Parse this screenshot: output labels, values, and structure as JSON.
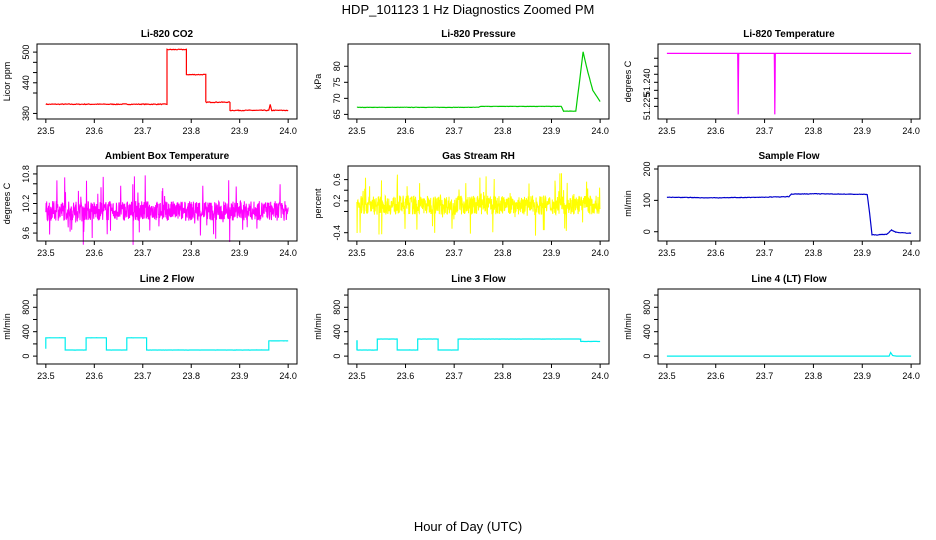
{
  "figure": {
    "title": "HDP_101123  1 Hz Diagnostics Zoomed PM",
    "xlabel": "Hour of Day (UTC)"
  },
  "chart_data": [
    {
      "type": "line",
      "title": "Li-820 CO2",
      "ylabel": "Licor ppm",
      "color": "#ff0000",
      "xlim": [
        23.49,
        24.01
      ],
      "ylim": [
        375,
        510
      ],
      "xticks": [
        "23.5",
        "23.6",
        "23.7",
        "23.8",
        "23.9",
        "24.0"
      ],
      "yticks": [
        380,
        440,
        500
      ],
      "yticks_minor": [
        420,
        460,
        480
      ],
      "series": [
        {
          "kind": "step",
          "noise": 1.5,
          "x": [
            23.5,
            23.75,
            23.75,
            23.79,
            23.79,
            23.83,
            23.83,
            23.88,
            23.88,
            23.96,
            23.963,
            23.966,
            24.0
          ],
          "y": [
            398,
            398,
            505,
            505,
            456,
            456,
            402,
            402,
            386,
            386,
            397,
            386,
            386
          ]
        }
      ]
    },
    {
      "type": "line",
      "title": "Li-820 Pressure",
      "ylabel": "kPa",
      "color": "#00cc00",
      "xlim": [
        23.49,
        24.01
      ],
      "ylim": [
        64.5,
        86
      ],
      "xticks": [
        "23.5",
        "23.6",
        "23.7",
        "23.8",
        "23.9",
        "24.0"
      ],
      "yticks": [
        65,
        70,
        75,
        80
      ],
      "series": [
        {
          "kind": "line",
          "noise": 0.1,
          "x": [
            23.5,
            23.75,
            23.755,
            23.92,
            23.925,
            23.95,
            23.955,
            23.965,
            23.975,
            23.985,
            24.0
          ],
          "y": [
            67.2,
            67.2,
            67.5,
            67.5,
            66.0,
            66.0,
            72.0,
            84.5,
            78.0,
            72.5,
            69.0
          ]
        }
      ]
    },
    {
      "type": "line",
      "title": "Li-820 Temperature",
      "ylabel": "degrees C",
      "color": "#ff00ff",
      "xlim": [
        23.49,
        24.01
      ],
      "ylim": [
        51.219,
        51.262
      ],
      "xticks": [
        "23.5",
        "23.6",
        "23.7",
        "23.8",
        "23.9",
        "24.0"
      ],
      "yticks": [
        "51.225",
        "51.240"
      ],
      "yticks_minor": [
        51.23,
        51.235,
        51.245,
        51.25,
        51.255
      ],
      "series": [
        {
          "kind": "line",
          "noise": 0,
          "x": [
            23.5,
            23.645,
            23.646,
            23.647,
            23.72,
            23.721,
            23.722,
            24.0
          ],
          "y": [
            51.258,
            51.258,
            51.22,
            51.258,
            51.258,
            51.22,
            51.258,
            51.258
          ]
        }
      ]
    },
    {
      "type": "line",
      "title": "Ambient Box Temperature",
      "ylabel": "degrees C",
      "color": "#ff00ff",
      "xlim": [
        23.49,
        24.01
      ],
      "ylim": [
        9.5,
        10.9
      ],
      "xticks": [
        "23.5",
        "23.6",
        "23.7",
        "23.8",
        "23.9",
        "24.0"
      ],
      "yticks": [
        9.6,
        10.2,
        10.8
      ],
      "yticks_minor": [
        9.8,
        10.0,
        10.4,
        10.6
      ],
      "series": [
        {
          "kind": "noisy",
          "center": 10.05,
          "amp": 0.2,
          "spike": 0.75
        }
      ]
    },
    {
      "type": "line",
      "title": "Gas Stream RH",
      "ylabel": "percent",
      "color": "#ffff00",
      "xlim": [
        23.49,
        24.01
      ],
      "ylim": [
        -0.5,
        0.8
      ],
      "xticks": [
        "23.5",
        "23.6",
        "23.7",
        "23.8",
        "23.9",
        "24.0"
      ],
      "yticks": [
        -0.4,
        0.2,
        0.6
      ],
      "yticks_minor": [
        0.0,
        0.4
      ],
      "series": [
        {
          "kind": "noisy",
          "center": 0.12,
          "amp": 0.18,
          "spike": 0.6
        }
      ]
    },
    {
      "type": "line",
      "title": "Sample Flow",
      "ylabel": "ml/min",
      "color": "#0000cc",
      "xlim": [
        23.49,
        24.01
      ],
      "ylim": [
        -20,
        200
      ],
      "xticks": [
        "23.5",
        "23.6",
        "23.7",
        "23.8",
        "23.9",
        "24.0"
      ],
      "yticks": [
        0,
        100,
        200
      ],
      "series": [
        {
          "kind": "line",
          "noise": 1.5,
          "x": [
            23.5,
            23.6,
            23.7,
            23.75,
            23.755,
            23.8,
            23.91,
            23.915,
            23.92,
            23.93,
            23.95,
            23.96,
            23.97,
            24.0
          ],
          "y": [
            110,
            108,
            110,
            112,
            120,
            121,
            119,
            60,
            -10,
            -10,
            -8,
            5,
            -2,
            -5
          ]
        }
      ]
    },
    {
      "type": "line",
      "title": "Line 2 Flow",
      "ylabel": "ml/min",
      "color": "#00eeee",
      "xlim": [
        23.49,
        24.01
      ],
      "ylim": [
        -80,
        1050
      ],
      "xticks": [
        "23.5",
        "23.6",
        "23.7",
        "23.8",
        "23.9",
        "24.0"
      ],
      "yticks": [
        0,
        400,
        800
      ],
      "yticks_minor": [
        200,
        600,
        1000
      ],
      "series": [
        {
          "kind": "step",
          "noise": 2,
          "x": [
            23.5,
            23.5,
            23.54,
            23.54,
            23.583,
            23.583,
            23.625,
            23.625,
            23.667,
            23.667,
            23.708,
            23.708,
            23.96,
            23.96,
            24.0
          ],
          "y": [
            120,
            300,
            300,
            100,
            100,
            300,
            300,
            100,
            100,
            300,
            300,
            100,
            100,
            250,
            250
          ]
        }
      ]
    },
    {
      "type": "line",
      "title": "Line 3 Flow",
      "ylabel": "ml/min",
      "color": "#00eeee",
      "xlim": [
        23.49,
        24.01
      ],
      "ylim": [
        -80,
        1050
      ],
      "xticks": [
        "23.5",
        "23.6",
        "23.7",
        "23.8",
        "23.9",
        "24.0"
      ],
      "yticks": [
        0,
        400,
        800
      ],
      "yticks_minor": [
        200,
        600,
        1000
      ],
      "series": [
        {
          "kind": "step",
          "noise": 2,
          "x": [
            23.5,
            23.5,
            23.5005,
            23.5005,
            23.542,
            23.542,
            23.583,
            23.583,
            23.625,
            23.625,
            23.667,
            23.667,
            23.708,
            23.708,
            23.96,
            23.96,
            24.0
          ],
          "y": [
            100,
            250,
            250,
            100,
            100,
            280,
            280,
            100,
            100,
            280,
            280,
            100,
            100,
            280,
            280,
            240,
            240
          ]
        }
      ]
    },
    {
      "type": "line",
      "title": "Line 4 (LT) Flow",
      "ylabel": "ml/min",
      "color": "#00eeee",
      "xlim": [
        23.49,
        24.01
      ],
      "ylim": [
        -80,
        1050
      ],
      "xticks": [
        "23.5",
        "23.6",
        "23.7",
        "23.8",
        "23.9",
        "24.0"
      ],
      "yticks": [
        0,
        400,
        800
      ],
      "yticks_minor": [
        200,
        600,
        1000
      ],
      "series": [
        {
          "kind": "line",
          "noise": 1,
          "x": [
            23.5,
            23.955,
            23.958,
            23.962,
            23.97,
            24.0
          ],
          "y": [
            0,
            0,
            60,
            10,
            0,
            0
          ]
        }
      ]
    }
  ]
}
